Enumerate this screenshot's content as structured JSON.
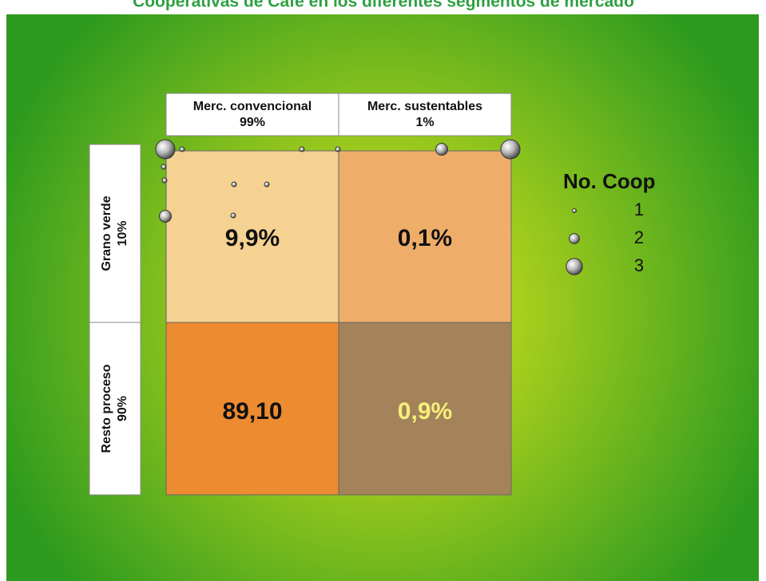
{
  "title": "Cooperativas de Café en los diferentes segmentos de mercado",
  "columns": [
    {
      "label": "Merc. convencional",
      "share": "99%"
    },
    {
      "label": "Merc. sustentables",
      "share": "1%"
    }
  ],
  "rows": [
    {
      "label": "Grano verde",
      "share": "10%"
    },
    {
      "label": "Resto proceso",
      "share": "90%"
    }
  ],
  "cells": [
    [
      {
        "value": "9,9%",
        "color": "#f5d291"
      },
      {
        "value": "0,1%",
        "color": "#efad6a"
      }
    ],
    [
      {
        "value": "89,10",
        "color": "#ed8b31"
      },
      {
        "value": "0,9%",
        "color": "#a4825a"
      }
    ]
  ],
  "bubbles": [
    3,
    1,
    1,
    1,
    2,
    3,
    1,
    1,
    1,
    1,
    2,
    1
  ],
  "legend": {
    "title": "No. Coop",
    "items": [
      1,
      2,
      3
    ]
  }
}
